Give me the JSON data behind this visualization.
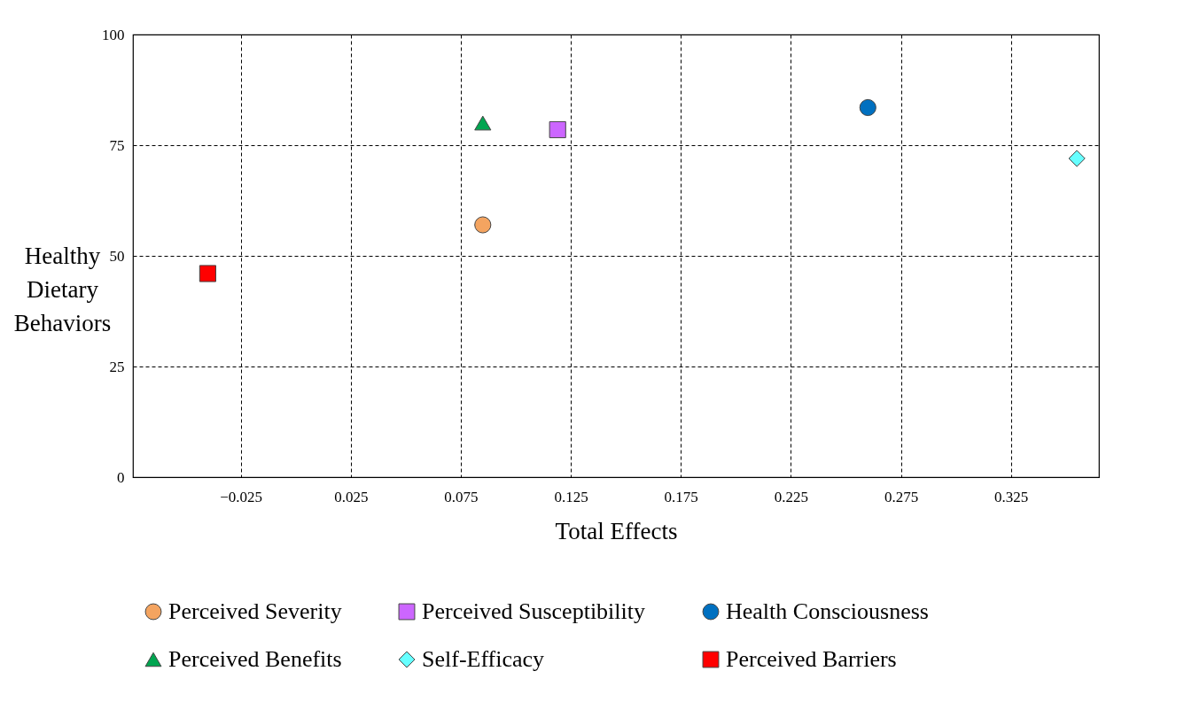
{
  "chart_data": {
    "type": "scatter",
    "xlabel": "Total Effects",
    "ylabel": "Healthy Dietary Behaviors",
    "xlim": [
      -0.074,
      0.365
    ],
    "xticks": [
      -0.025,
      0.025,
      0.075,
      0.125,
      0.175,
      0.225,
      0.275,
      0.325
    ],
    "ylim": [
      0,
      100
    ],
    "yticks": [
      0,
      25,
      50,
      75,
      100
    ],
    "grid": true,
    "line_style": "dashed",
    "legend": "bottom",
    "series": [
      {
        "name": "Perceived Severity",
        "color": "#f4a460",
        "marker": "circle",
        "x": [
          0.085
        ],
        "values": [
          57
        ]
      },
      {
        "name": "Perceived Susceptibility",
        "color": "#cc66ff",
        "marker": "square",
        "x": [
          0.119
        ],
        "values": [
          78.5
        ]
      },
      {
        "name": "Health Consciousness",
        "color": "#0070c0",
        "x": [
          0.26
        ],
        "values": [
          83.5
        ]
      },
      {
        "name": "Perceived Benefits",
        "color": "#00a550",
        "marker": "triangle",
        "x": [
          0.085
        ],
        "values": [
          80
        ]
      },
      {
        "name": "Self-Efficacy",
        "color": "#66ffff",
        "marker": "diamond",
        "x": [
          0.355
        ],
        "values": [
          72
        ]
      },
      {
        "name": "Perceived Barriers",
        "color": "#ff0000",
        "marker": "square",
        "x": [
          -0.04
        ],
        "values": [
          46
        ]
      }
    ]
  }
}
